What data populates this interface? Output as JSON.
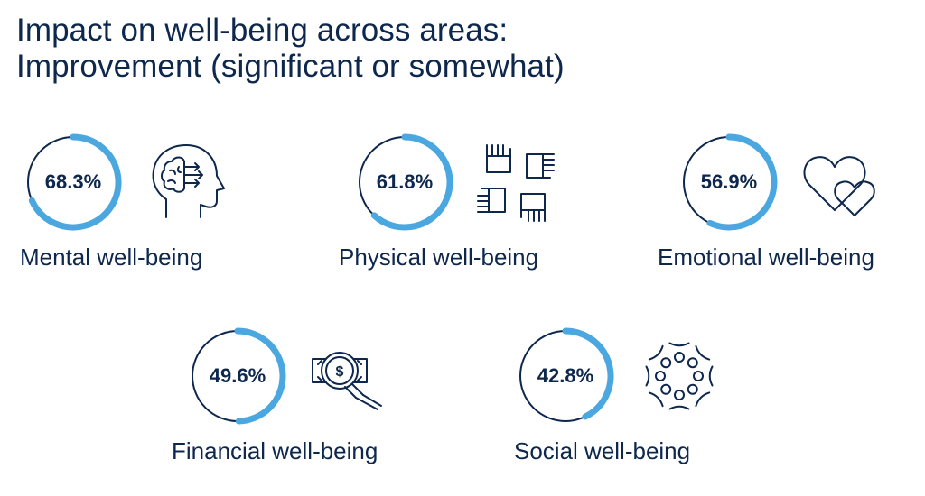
{
  "title": {
    "line1": "Impact on well-being across areas:",
    "line2": "Improvement (significant or somewhat)"
  },
  "colors": {
    "accent": "#4aa7e0",
    "ink": "#0d274d"
  },
  "chart_data": {
    "type": "donut-gauges",
    "title": "Impact on well-being across areas: Improvement (significant or somewhat)",
    "series": [
      {
        "name": "Mental well-being",
        "value": 68.3,
        "display": "68.3%",
        "icon": "head-brain-icon"
      },
      {
        "name": "Physical well-being",
        "value": 61.8,
        "display": "61.8%",
        "icon": "linked-hands-icon"
      },
      {
        "name": "Emotional well-being",
        "value": 56.9,
        "display": "56.9%",
        "icon": "hearts-icon"
      },
      {
        "name": "Financial well-being",
        "value": 49.6,
        "display": "49.6%",
        "icon": "money-magnifier-icon"
      },
      {
        "name": "Social well-being",
        "value": 42.8,
        "display": "42.8%",
        "icon": "people-circle-icon"
      }
    ]
  }
}
